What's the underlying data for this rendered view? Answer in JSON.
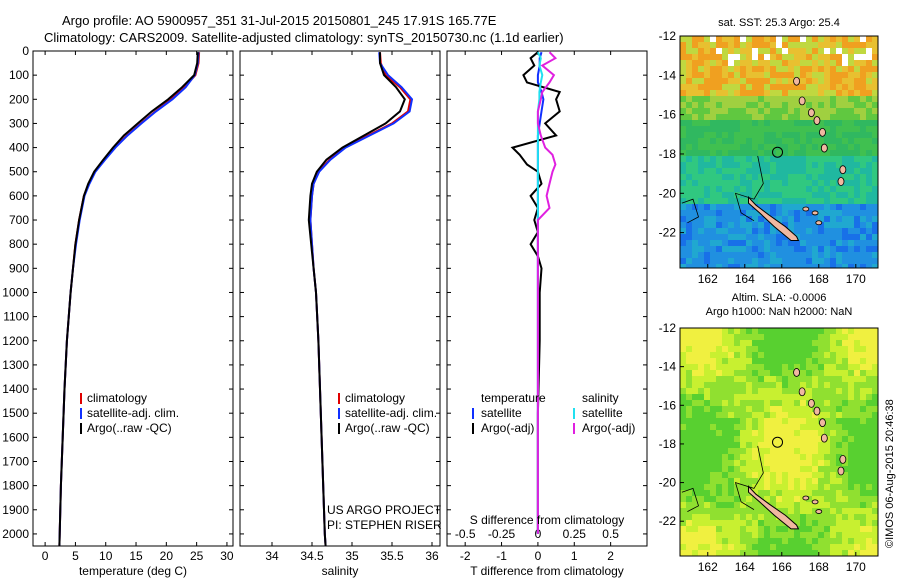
{
  "title_line1": "Argo profile: AO 5900957_351 31-Jul-2015 20150801_245 17.91S 165.77E",
  "title_line2": "Climatology: CARS2009. Satellite-adjusted climatology: synTS_20150730.nc (1.1d earlier)",
  "project_line1": "US ARGO PROJECT",
  "project_line2": "PI: STEPHEN RISER",
  "credit": "©IMOS 06-Aug-2015 20:46:38",
  "colors": {
    "climatology": "#e00000",
    "satellite": "#1030ff",
    "argo": "#000000",
    "sat_salinity": "#20e0f0",
    "argo_salinity": "#e020e0"
  },
  "chart_data": [
    {
      "type": "line",
      "xlabel": "temperature (deg C)",
      "xlim": [
        -2,
        31
      ],
      "xticks": [
        "0",
        "5",
        "10",
        "15",
        "20",
        "25",
        "30"
      ],
      "ylim": [
        2050,
        0
      ],
      "yticks": [
        "0",
        "100",
        "200",
        "300",
        "400",
        "500",
        "600",
        "700",
        "800",
        "900",
        "1000",
        "1100",
        "1200",
        "1300",
        "1400",
        "1500",
        "1600",
        "1700",
        "1800",
        "1900",
        "2000"
      ],
      "legend": [
        "climatology",
        "satellite-adj. clim.",
        "Argo(..raw -QC)"
      ],
      "depth": [
        5,
        50,
        100,
        150,
        200,
        250,
        300,
        350,
        400,
        450,
        500,
        550,
        600,
        700,
        800,
        900,
        1000,
        1200,
        1400,
        1600,
        1800,
        2000,
        2050
      ],
      "series": [
        {
          "name": "climatology",
          "values": [
            25.4,
            25.3,
            24.8,
            23.0,
            20.8,
            18.2,
            15.8,
            13.5,
            11.5,
            9.8,
            8.2,
            7.2,
            6.4,
            5.6,
            5.0,
            4.6,
            4.2,
            3.6,
            3.2,
            2.9,
            2.6,
            2.4,
            2.35
          ]
        },
        {
          "name": "satellite-adj. clim.",
          "values": [
            25.3,
            25.2,
            24.7,
            23.2,
            21.0,
            18.3,
            15.9,
            13.6,
            11.6,
            9.9,
            8.3,
            7.3,
            6.5,
            5.7,
            5.1,
            4.6,
            4.2,
            3.6,
            3.2,
            2.9,
            2.6,
            2.4,
            2.35
          ]
        },
        {
          "name": "Argo(..raw -QC)",
          "values": [
            25.2,
            25.1,
            24.6,
            22.6,
            20.3,
            17.6,
            15.3,
            13.0,
            11.2,
            9.6,
            8.1,
            7.1,
            6.4,
            5.6,
            5.0,
            4.6,
            4.2,
            3.6,
            3.2,
            2.9,
            2.6,
            2.4,
            2.35
          ]
        }
      ]
    },
    {
      "type": "line",
      "xlabel": "salinity",
      "xlim": [
        33.6,
        36.1
      ],
      "xticks": [
        "34",
        "34.5",
        "35",
        "35.5",
        "36"
      ],
      "ylim": [
        2050,
        0
      ],
      "legend": [
        "climatology",
        "satellite-adj. clim.",
        "Argo(..raw -QC)"
      ],
      "depth": [
        5,
        50,
        100,
        150,
        200,
        250,
        300,
        350,
        400,
        450,
        500,
        550,
        600,
        700,
        800,
        900,
        1000,
        1200,
        1400,
        1600,
        1800,
        2000,
        2050
      ],
      "series": [
        {
          "name": "climatology",
          "values": [
            35.35,
            35.36,
            35.42,
            35.6,
            35.73,
            35.7,
            35.5,
            35.2,
            34.9,
            34.72,
            34.58,
            34.52,
            34.5,
            34.48,
            34.5,
            34.52,
            34.55,
            34.58,
            34.6,
            34.62,
            34.64,
            34.66,
            34.67
          ]
        },
        {
          "name": "satellite-adj. clim.",
          "values": [
            35.34,
            35.35,
            35.45,
            35.62,
            35.75,
            35.72,
            35.52,
            35.22,
            34.92,
            34.73,
            34.59,
            34.52,
            34.5,
            34.48,
            34.5,
            34.52,
            34.55,
            34.58,
            34.6,
            34.62,
            34.64,
            34.66,
            34.67
          ]
        },
        {
          "name": "Argo(..raw -QC)",
          "values": [
            35.35,
            35.35,
            35.4,
            35.55,
            35.66,
            35.6,
            35.42,
            35.15,
            34.88,
            34.68,
            34.56,
            34.5,
            34.48,
            34.46,
            34.49,
            34.52,
            34.55,
            34.58,
            34.6,
            34.62,
            34.64,
            34.66,
            34.67
          ]
        }
      ]
    },
    {
      "type": "line",
      "xlabel": "T difference from climatology",
      "xlabel2": "S difference from climatology",
      "xlim": [
        -2.5,
        3.0
      ],
      "xticks": [
        "-2",
        "-1",
        "0",
        "1",
        "2"
      ],
      "xticks_top": [
        "-0.5",
        "-0.25",
        "0",
        "0.25",
        "0.5"
      ],
      "ylim": [
        2050,
        0
      ],
      "legend_temperature": [
        "temperature",
        "satellite",
        "Argo(-adj)"
      ],
      "legend_salinity": [
        "salinity",
        "satellite",
        "Argo(-adj)"
      ],
      "depth": [
        5,
        30,
        60,
        100,
        130,
        170,
        200,
        250,
        300,
        350,
        400,
        430,
        470,
        500,
        550,
        600,
        650,
        700,
        750,
        800,
        850,
        900,
        1000,
        1200,
        1500,
        2000
      ],
      "series": [
        {
          "name": "T satellite",
          "values": [
            0.1,
            0.05,
            0.05,
            0.0,
            0.0,
            0.1,
            0.15,
            0.1,
            0.05,
            0.0,
            0.0,
            0.0,
            0.0,
            0.0,
            0.0,
            0.0,
            0.0,
            0.0,
            0.0,
            0.0,
            0.0,
            0.0,
            0.0,
            0.0,
            0.0,
            0.0
          ]
        },
        {
          "name": "T Argo(-adj)",
          "values": [
            0.0,
            -0.2,
            -0.1,
            -0.4,
            -0.3,
            0.6,
            0.5,
            0.6,
            0.2,
            0.5,
            -0.7,
            -0.5,
            -0.3,
            0.0,
            0.1,
            -0.2,
            0.0,
            -0.1,
            0.0,
            -0.2,
            0.0,
            0.1,
            0.05,
            0.05,
            0.0,
            0.0
          ]
        },
        {
          "name": "S satellite",
          "values": [
            0.0,
            0.02,
            0.01,
            0.03,
            0.02,
            0.01,
            0.01,
            0.0,
            0.0,
            0.0,
            0.0,
            0.0,
            0.0,
            0.0,
            0.0,
            0.0,
            0.0,
            0.0,
            0.0,
            0.0,
            0.0,
            0.0,
            0.0,
            0.0,
            0.0,
            0.0
          ]
        },
        {
          "name": "S Argo(-adj)",
          "values": [
            0.08,
            0.12,
            0.03,
            0.11,
            0.08,
            0.03,
            0.02,
            0.0,
            0.0,
            0.02,
            0.05,
            0.1,
            0.12,
            0.1,
            0.08,
            0.06,
            0.08,
            0.0,
            0.0,
            0.0,
            0.0,
            0.0,
            0.0,
            0.0,
            0.0,
            0.0
          ]
        }
      ]
    },
    {
      "type": "heatmap",
      "title": "sat. SST: 25.3 Argo: 25.4",
      "xlim": [
        160.5,
        171.2
      ],
      "ylim": [
        -23.8,
        -12
      ],
      "xticks": [
        "162",
        "164",
        "166",
        "168",
        "170"
      ],
      "yticks": [
        "-12",
        "-14",
        "-16",
        "-18",
        "-20",
        "-22"
      ],
      "argo_position": {
        "lon": 165.77,
        "lat": -17.91
      }
    },
    {
      "type": "heatmap",
      "title_line1": "Altim. SLA: -0.0006",
      "title_line2": "Argo h1000: NaN h2000: NaN",
      "xlim": [
        160.5,
        171.2
      ],
      "ylim": [
        -23.8,
        -12
      ],
      "xticks": [
        "162",
        "164",
        "166",
        "168",
        "170"
      ],
      "yticks": [
        "-12",
        "-14",
        "-16",
        "-18",
        "-20",
        "-22"
      ],
      "argo_position": {
        "lon": 165.77,
        "lat": -17.91
      }
    }
  ]
}
